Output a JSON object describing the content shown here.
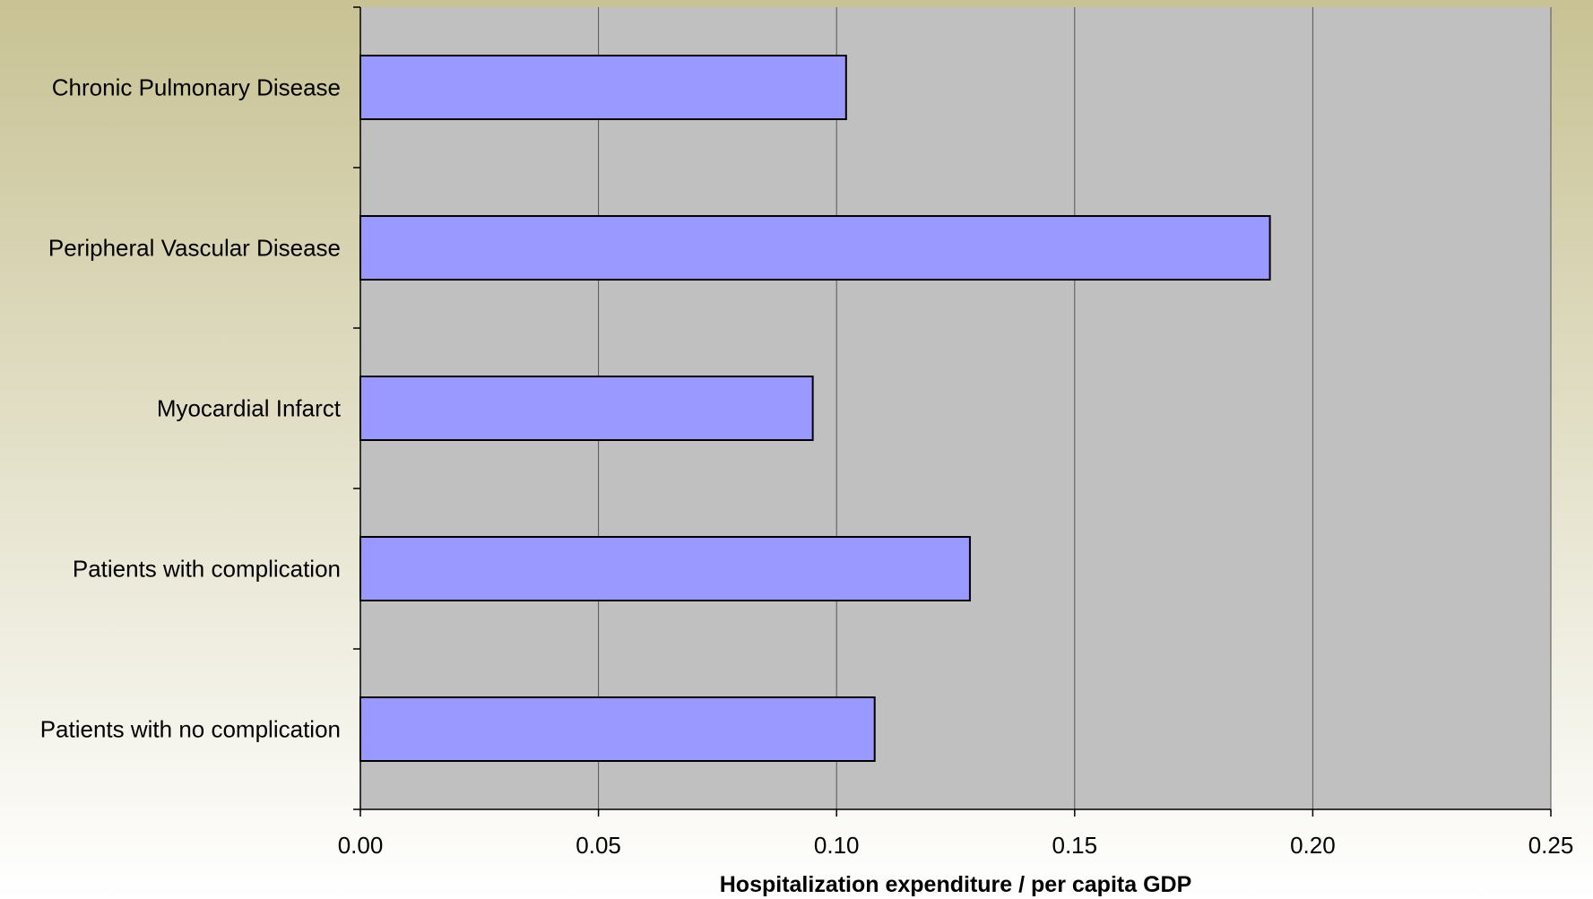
{
  "chart_data": {
    "type": "bar",
    "orientation": "horizontal",
    "categories": [
      "Chronic Pulmonary Disease",
      "Peripheral Vascular Disease",
      "Myocardial Infarct",
      "Patients with complication",
      "Patients with no complication"
    ],
    "values": [
      0.102,
      0.191,
      0.095,
      0.128,
      0.108
    ],
    "title": "",
    "xlabel": "Hospitalization expenditure / per capita GDP",
    "ylabel": "",
    "xlim": [
      0,
      0.25
    ],
    "xticks": [
      "0.00",
      "0.05",
      "0.10",
      "0.15",
      "0.20",
      "0.25"
    ],
    "grid": "vertical",
    "legend": "none"
  },
  "colors": {
    "background_top": "#c8c294",
    "background_bottom": "#ffffff",
    "plot_area": "#c0c0c0",
    "bar_fill": "#9999ff",
    "bar_stroke": "#000000",
    "grid": "#555555",
    "axis": "#000000"
  }
}
